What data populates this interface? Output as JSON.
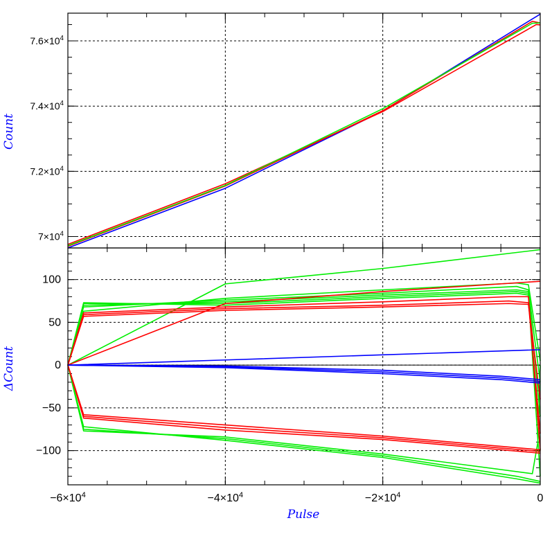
{
  "colors": {
    "red": "#ff0000",
    "green": "#00ee00",
    "blue": "#0000ff",
    "axis_title": "#0000ff"
  },
  "chart_data": [
    {
      "type": "line",
      "panel": "top",
      "xlabel": "",
      "ylabel": "Count",
      "xlim": [
        -60000,
        0
      ],
      "ylim": [
        69650,
        76850
      ],
      "grid": true,
      "x_ticks": [
        -60000,
        -40000,
        -20000,
        0
      ],
      "y_ticks": [
        70000,
        72000,
        74000,
        76000
      ],
      "y_tick_labels": [
        {
          "value": 70000,
          "mant": "7",
          "exp": "4"
        },
        {
          "value": 72000,
          "mant": "7.2",
          "exp": "4"
        },
        {
          "value": 74000,
          "mant": "7.4",
          "exp": "4"
        },
        {
          "value": 76000,
          "mant": "7.6",
          "exp": "4"
        }
      ],
      "series": [
        {
          "color": "blue",
          "x": [
            -60000,
            -40000,
            -20000,
            0
          ],
          "y": [
            69650,
            71480,
            73850,
            76820
          ]
        },
        {
          "color": "red",
          "x": [
            -60000,
            -40000,
            -20000,
            -1000,
            0
          ],
          "y": [
            69700,
            71550,
            73860,
            76600,
            76550
          ]
        },
        {
          "color": "red",
          "x": [
            -60000,
            -40000,
            -20000,
            -500,
            0
          ],
          "y": [
            69760,
            71620,
            73830,
            76500,
            76490
          ]
        },
        {
          "color": "green",
          "x": [
            -60000,
            -40000,
            -20000,
            -1000,
            0
          ],
          "y": [
            69720,
            71570,
            73920,
            76540,
            76550
          ]
        }
      ]
    },
    {
      "type": "line",
      "panel": "bottom",
      "xlabel": "Pulse",
      "ylabel": "ΔCount",
      "xlim": [
        -60000,
        0
      ],
      "ylim": [
        -140,
        137
      ],
      "grid": true,
      "zero_line": true,
      "x_ticks": [
        -60000,
        -40000,
        -20000,
        0
      ],
      "x_tick_labels": [
        {
          "value": -60000,
          "mant": "−6",
          "exp": "4"
        },
        {
          "value": -40000,
          "mant": "−4",
          "exp": "4"
        },
        {
          "value": -20000,
          "mant": "−2",
          "exp": "4"
        },
        {
          "value": 0,
          "mant": "0",
          "exp": ""
        }
      ],
      "y_ticks": [
        -100,
        -50,
        0,
        50,
        100
      ],
      "y_tick_labels": [
        "−100",
        "−50",
        "0",
        "50",
        "100"
      ],
      "series": [
        {
          "color": "green",
          "x": [
            -60000,
            -58000,
            -40000,
            -20000,
            -3000,
            -1500,
            0
          ],
          "y": [
            0,
            63,
            78,
            88,
            96,
            94,
            5
          ]
        },
        {
          "color": "green",
          "x": [
            -60000,
            -58000,
            -40000,
            -20000,
            -3000,
            -1500,
            0
          ],
          "y": [
            0,
            68,
            76,
            84,
            92,
            88,
            -20
          ]
        },
        {
          "color": "green",
          "x": [
            -60000,
            -58000,
            -40000,
            -20000,
            -3000,
            -1500,
            0
          ],
          "y": [
            0,
            70,
            74,
            82,
            88,
            86,
            -60
          ]
        },
        {
          "color": "green",
          "x": [
            -60000,
            -58000,
            -40000,
            -20000,
            -3000,
            -1500,
            0
          ],
          "y": [
            0,
            72,
            72,
            80,
            86,
            84,
            -100
          ]
        },
        {
          "color": "green",
          "x": [
            -60000,
            -58000,
            -40000,
            -20000,
            -3000,
            -1500,
            0
          ],
          "y": [
            0,
            73,
            70,
            78,
            84,
            82,
            -130
          ]
        },
        {
          "color": "green",
          "x": [
            -60000,
            -40000,
            -20000,
            0
          ],
          "y": [
            0,
            95,
            113,
            135
          ]
        },
        {
          "color": "green",
          "x": [
            -60000,
            -58000,
            -40000,
            -20000,
            -3000,
            0
          ],
          "y": [
            0,
            -72,
            -88,
            -108,
            -133,
            -138
          ]
        },
        {
          "color": "green",
          "x": [
            -60000,
            -58000,
            -40000,
            -20000,
            -3000,
            0
          ],
          "y": [
            0,
            -75,
            -86,
            -106,
            -130,
            -136
          ]
        },
        {
          "color": "green",
          "x": [
            -60000,
            -58000,
            -40000,
            -20000,
            -1000,
            -300,
            0
          ],
          "y": [
            0,
            -77,
            -84,
            -104,
            -127,
            -90,
            0
          ]
        },
        {
          "color": "red",
          "x": [
            -60000,
            -58000,
            -40000,
            -20000,
            -4000,
            -1500,
            0
          ],
          "y": [
            0,
            57,
            64,
            68,
            72,
            71,
            -40
          ]
        },
        {
          "color": "red",
          "x": [
            -60000,
            -58000,
            -40000,
            -20000,
            -4000,
            -1500,
            0
          ],
          "y": [
            0,
            59,
            66,
            70,
            75,
            73,
            -80
          ]
        },
        {
          "color": "red",
          "x": [
            -60000,
            -58000,
            -40000,
            -20000,
            -4000,
            -1500,
            0
          ],
          "y": [
            0,
            61,
            68,
            74,
            80,
            80,
            -100
          ]
        },
        {
          "color": "red",
          "x": [
            -60000,
            -40000,
            -20000,
            0
          ],
          "y": [
            0,
            72,
            86,
            98
          ]
        },
        {
          "color": "red",
          "x": [
            -60000,
            -58000,
            -40000,
            -20000,
            -5000,
            0
          ],
          "y": [
            0,
            -58,
            -70,
            -83,
            -95,
            -99
          ]
        },
        {
          "color": "red",
          "x": [
            -60000,
            -58000,
            -40000,
            -20000,
            -5000,
            0
          ],
          "y": [
            0,
            -60,
            -73,
            -85,
            -97,
            -101
          ]
        },
        {
          "color": "red",
          "x": [
            -60000,
            -58000,
            -40000,
            -20000,
            -5000,
            0
          ],
          "y": [
            0,
            -62,
            -76,
            -87,
            -99,
            -103
          ]
        },
        {
          "color": "blue",
          "x": [
            -60000,
            -40000,
            -20000,
            -5000,
            0
          ],
          "y": [
            0,
            -3,
            -10,
            -17,
            -21
          ]
        },
        {
          "color": "blue",
          "x": [
            -60000,
            -40000,
            -20000,
            -5000,
            0
          ],
          "y": [
            0,
            -2,
            -8,
            -15,
            -19
          ]
        },
        {
          "color": "blue",
          "x": [
            -60000,
            -40000,
            -20000,
            -5000,
            0
          ],
          "y": [
            0,
            -1,
            -6,
            -13,
            -17
          ]
        },
        {
          "color": "blue",
          "x": [
            -60000,
            -40000,
            -20000,
            0
          ],
          "y": [
            0,
            6,
            12,
            18
          ]
        }
      ]
    }
  ]
}
